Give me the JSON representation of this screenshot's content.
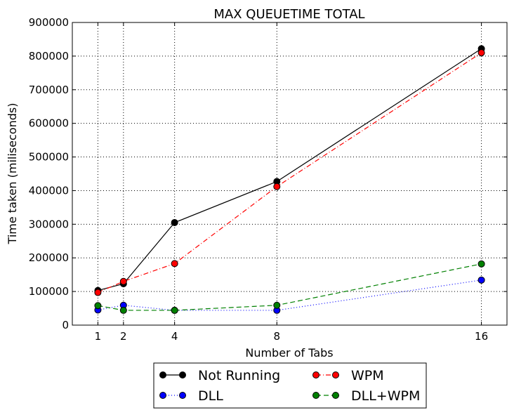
{
  "chart_data": {
    "type": "line",
    "title": "MAX QUEUETIME TOTAL",
    "xlabel": "Number of Tabs",
    "ylabel": "Time taken (miliseconds)",
    "x": [
      1,
      2,
      4,
      8,
      16
    ],
    "xticks": [
      "1",
      "2",
      "4",
      "8",
      "16"
    ],
    "xlim": [
      0,
      17
    ],
    "ylim": [
      0,
      900000
    ],
    "yticks": [
      "0",
      "100000",
      "200000",
      "300000",
      "400000",
      "500000",
      "600000",
      "700000",
      "800000",
      "900000"
    ],
    "grid": true,
    "legend_position": "below",
    "series": [
      {
        "name": "Not Running",
        "color": "#000000",
        "linestyle": "solid",
        "values": [
          103000,
          123000,
          305000,
          427000,
          822000
        ]
      },
      {
        "name": "WPM",
        "color": "#ff0000",
        "linestyle": "dashdot",
        "values": [
          97000,
          130000,
          183000,
          412000,
          810000
        ]
      },
      {
        "name": "DLL",
        "color": "#0000ff",
        "linestyle": "dotted",
        "values": [
          45000,
          59000,
          44000,
          44000,
          134000
        ]
      },
      {
        "name": "DLL+WPM",
        "color": "#008000",
        "linestyle": "dashed",
        "values": [
          58000,
          44000,
          44000,
          59000,
          182000
        ]
      }
    ]
  }
}
